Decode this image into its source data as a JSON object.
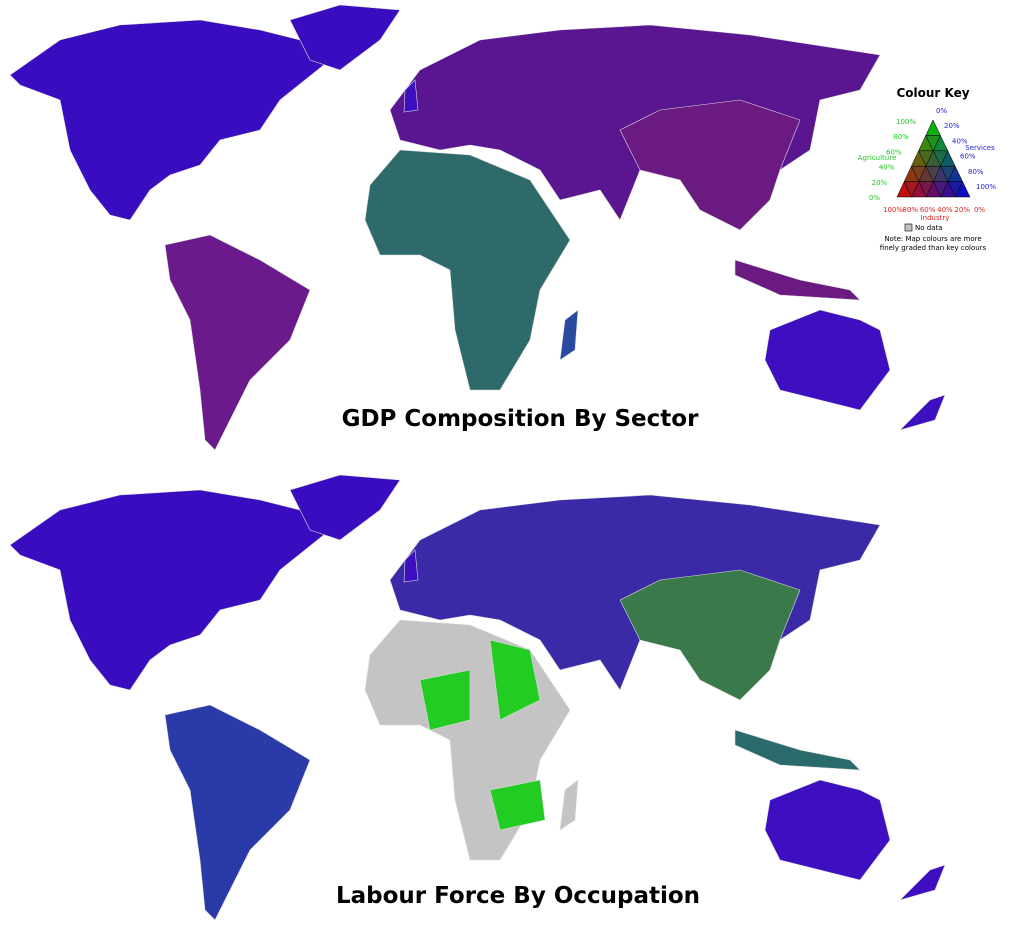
{
  "maps": [
    {
      "title": "GDP Composition By Sector"
    },
    {
      "title": "Labour Force By Occupation"
    }
  ],
  "colour_key": {
    "title": "Colour Key",
    "agriculture": {
      "label": "Agriculture",
      "ticks": [
        "100%",
        "80%",
        "60%",
        "40%",
        "20%",
        "0%"
      ]
    },
    "services": {
      "label": "Services",
      "ticks": [
        "0%",
        "20%",
        "40%",
        "60%",
        "80%",
        "100%"
      ]
    },
    "industry": {
      "label": "Industry",
      "ticks": [
        "100%",
        "80%",
        "60%",
        "40%",
        "20%",
        "0%"
      ]
    },
    "no_data": "No data",
    "note": [
      "Note: Map colours are more",
      "finely graded than key colours"
    ]
  }
}
